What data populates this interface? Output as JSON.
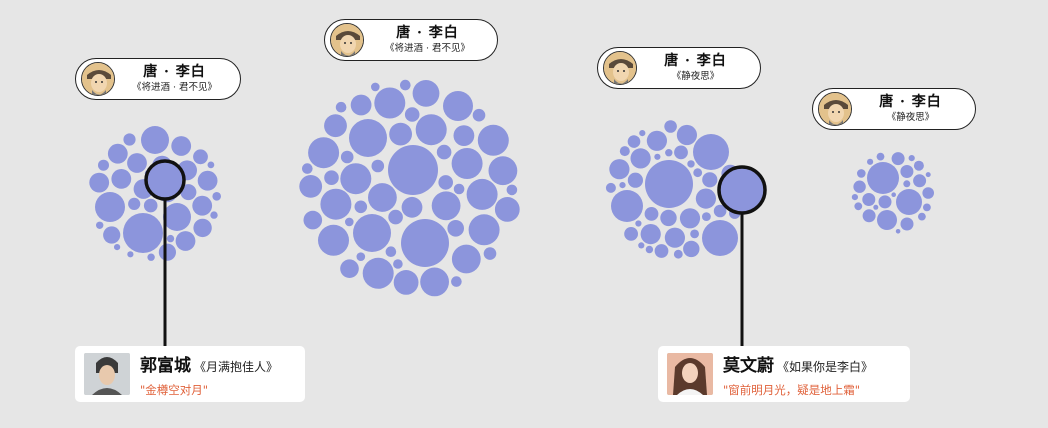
{
  "colors": {
    "bubble": "#8c95dc",
    "outline": "#111111",
    "quote": "#e0613a",
    "background": "#e6e6e6"
  },
  "poet_labels": [
    {
      "dynasty": "唐",
      "poet": "李白",
      "name": "唐 · 李白",
      "work": "《将进酒 · 君不见》",
      "icon": "poet-portrait-icon"
    },
    {
      "dynasty": "唐",
      "poet": "李白",
      "name": "唐 · 李白",
      "work": "《将进酒 · 君不见》",
      "icon": "poet-portrait-icon"
    },
    {
      "dynasty": "唐",
      "poet": "李白",
      "name": "唐 · 李白",
      "work": "《静夜思》",
      "icon": "poet-portrait-icon"
    },
    {
      "dynasty": "唐",
      "poet": "李白",
      "name": "唐 · 李白",
      "work": "《静夜思》",
      "icon": "poet-portrait-icon"
    }
  ],
  "singer_cards": [
    {
      "name": "郭富城",
      "song": "《月满抱佳人》",
      "quote": "\"金樽空对月\"",
      "icon": "singer-photo-icon"
    },
    {
      "name": "莫文蔚",
      "song": "《如果你是李白》",
      "quote": "\"窗前明月光，疑是地上霜\"",
      "icon": "singer-photo-icon"
    }
  ]
}
